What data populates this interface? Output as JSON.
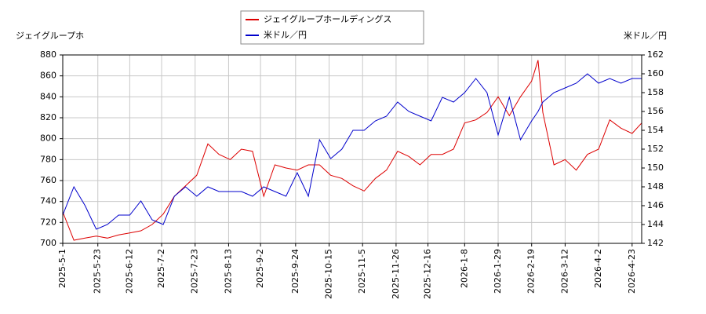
{
  "chart_data": {
    "type": "line",
    "ylabel": "ジェイグループホ",
    "y2label": "米ドル／円",
    "x": [
      "2025-5-1",
      "2025-5-8",
      "2025-5-15",
      "2025-5-22",
      "2025-5-29",
      "2025-6-5",
      "2025-6-12",
      "2025-6-19",
      "2025-6-26",
      "2025-7-3",
      "2025-7-10",
      "2025-7-17",
      "2025-7-24",
      "2025-7-31",
      "2025-8-7",
      "2025-8-14",
      "2025-8-21",
      "2025-8-28",
      "2025-9-4",
      "2025-9-11",
      "2025-9-18",
      "2025-9-25",
      "2025-10-2",
      "2025-10-9",
      "2025-10-16",
      "2025-10-23",
      "2025-10-30",
      "2025-11-6",
      "2025-11-13",
      "2025-11-20",
      "2025-11-27",
      "2025-12-4",
      "2025-12-11",
      "2025-12-18",
      "2025-12-25",
      "2026-1-1",
      "2026-1-8",
      "2026-1-15",
      "2026-1-22",
      "2026-1-29",
      "2026-2-5",
      "2026-2-12",
      "2026-2-19",
      "2026-2-23",
      "2026-2-26",
      "2026-3-5",
      "2026-3-12",
      "2026-3-19",
      "2026-3-26",
      "2026-4-2",
      "2026-4-9",
      "2026-4-16",
      "2026-4-23",
      "2026-4-29"
    ],
    "series": [
      {
        "name": "ジェイグループホールディングス",
        "color": "#dd0000",
        "axis": "y",
        "values": [
          730,
          703,
          705,
          707,
          705,
          708,
          710,
          712,
          718,
          728,
          745,
          755,
          765,
          795,
          785,
          780,
          790,
          788,
          745,
          775,
          772,
          770,
          775,
          775,
          765,
          762,
          755,
          750,
          762,
          770,
          788,
          783,
          775,
          785,
          785,
          790,
          815,
          818,
          825,
          840,
          822,
          840,
          855,
          875,
          825,
          775,
          780,
          770,
          785,
          790,
          818,
          810,
          805,
          815
        ]
      },
      {
        "name": "米ドル／円",
        "color": "#0000cc",
        "axis": "y2",
        "values": [
          145,
          148,
          146,
          143.5,
          144,
          145,
          145,
          146.5,
          144.5,
          144,
          147,
          148,
          147,
          148,
          147.5,
          147.5,
          147.5,
          147,
          148,
          147.5,
          147,
          149.5,
          147,
          153,
          151,
          152,
          154,
          154,
          155,
          155.5,
          157,
          156,
          155.5,
          155,
          157.5,
          157,
          158,
          159.5,
          158,
          153.5,
          157.5,
          153,
          155,
          156,
          157,
          158,
          158.5,
          159,
          160,
          159,
          159.5,
          159,
          159.5,
          159.5
        ]
      }
    ],
    "xlim": [
      "2025-5-1",
      "2026-4-29"
    ],
    "xticks": [
      "2025-5-1",
      "2025-5-23",
      "2025-6-12",
      "2025-7-2",
      "2025-7-23",
      "2025-8-13",
      "2025-9-2",
      "2025-9-24",
      "2025-10-15",
      "2025-11-5",
      "2025-11-26",
      "2025-12-16",
      "2026-1-8",
      "2026-1-29",
      "2026-2-19",
      "2026-3-12",
      "2026-4-2",
      "2026-4-23"
    ],
    "ylim": [
      700,
      880
    ],
    "yticks": [
      700,
      720,
      740,
      760,
      780,
      800,
      820,
      840,
      860,
      880
    ],
    "y2lim": [
      142,
      162
    ],
    "y2ticks": [
      142,
      144,
      146,
      148,
      150,
      152,
      154,
      156,
      158,
      160,
      162
    ],
    "grid": true,
    "legend": "upper center"
  }
}
